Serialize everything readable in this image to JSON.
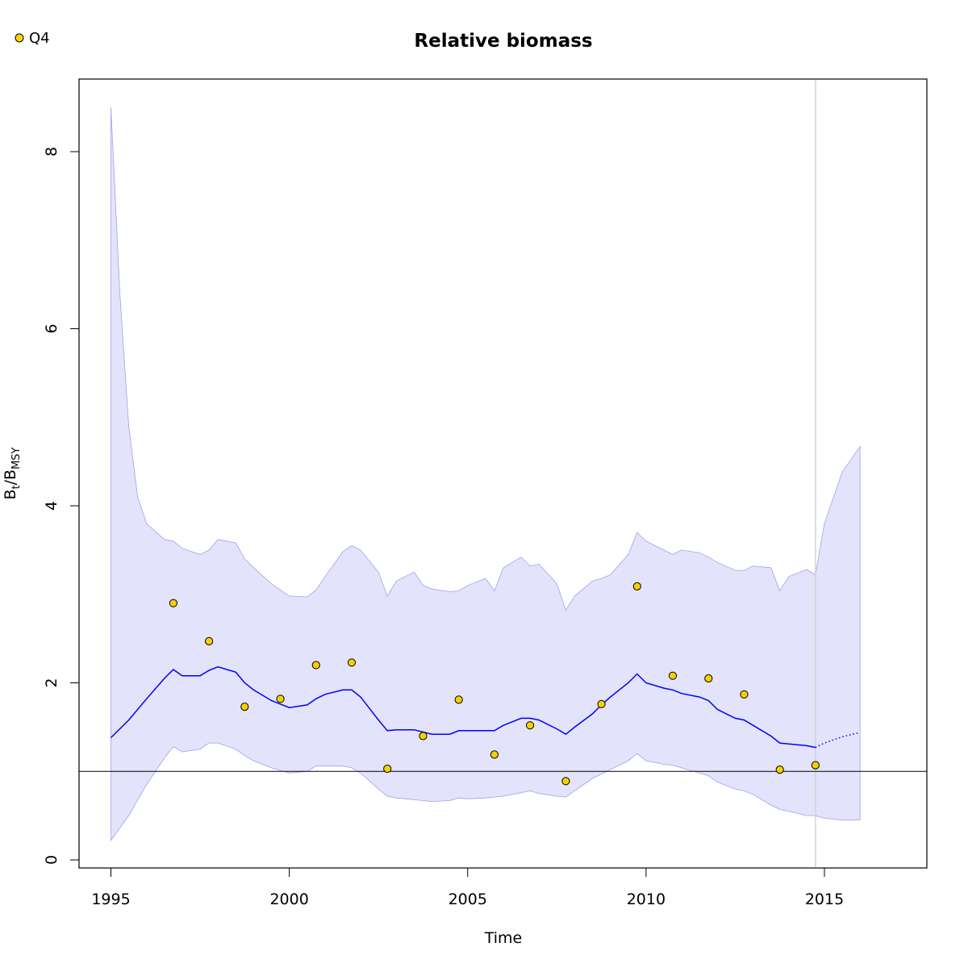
{
  "chart_data": {
    "type": "line",
    "title": "Relative biomass",
    "xlabel": "Time",
    "ylabel": {
      "base": "B",
      "sub1": "t",
      "sep": "/B",
      "sub2": "MSY"
    },
    "xlim": [
      1995,
      2018
    ],
    "ylim": [
      0,
      8.5
    ],
    "xticks": [
      1995,
      2000,
      2005,
      2010,
      2015
    ],
    "yticks": [
      0,
      2,
      4,
      6,
      8
    ],
    "reference_line_y": 1,
    "vertical_line_x": 2014.75,
    "legend": {
      "position": "top-left",
      "entries": [
        {
          "label": "Q4",
          "color": "#FFD700"
        }
      ]
    },
    "colors": {
      "band": "#E3E3FB",
      "band_edge": "#A0A0F0",
      "line": "#0000FF",
      "point": "#F5D000",
      "refline": "#000000",
      "vline": "#D3D3D3"
    },
    "series": [
      {
        "name": "B/Bmsy estimate",
        "kind": "line",
        "x": [
          1995,
          1995.5,
          1996,
          1996.5,
          1996.75,
          1997,
          1997.5,
          1997.75,
          1998,
          1998.5,
          1998.75,
          1999,
          1999.5,
          2000,
          2000.5,
          2000.75,
          2001,
          2001.5,
          2001.75,
          2002,
          2002.5,
          2002.75,
          2003,
          2003.5,
          2004,
          2004.5,
          2004.75,
          2005,
          2005.5,
          2005.75,
          2006,
          2006.5,
          2006.75,
          2007,
          2007.5,
          2007.75,
          2008,
          2008.5,
          2008.75,
          2009,
          2009.5,
          2009.75,
          2010,
          2010.5,
          2010.75,
          2011,
          2011.5,
          2011.75,
          2012,
          2012.5,
          2012.75,
          2013,
          2013.5,
          2013.75,
          2014,
          2014.5,
          2014.75
        ],
        "y": [
          1.38,
          1.58,
          1.82,
          2.05,
          2.15,
          2.08,
          2.08,
          2.14,
          2.18,
          2.12,
          2.0,
          1.92,
          1.8,
          1.72,
          1.75,
          1.82,
          1.87,
          1.92,
          1.92,
          1.84,
          1.58,
          1.46,
          1.47,
          1.47,
          1.42,
          1.42,
          1.46,
          1.46,
          1.46,
          1.46,
          1.52,
          1.6,
          1.6,
          1.58,
          1.48,
          1.42,
          1.5,
          1.65,
          1.75,
          1.84,
          2.0,
          2.1,
          2.0,
          1.94,
          1.92,
          1.88,
          1.84,
          1.8,
          1.7,
          1.6,
          1.58,
          1.52,
          1.4,
          1.32,
          1.31,
          1.29,
          1.27
        ]
      },
      {
        "name": "B/Bmsy forecast",
        "kind": "dotted-line",
        "x": [
          2014.75,
          2015,
          2015.5,
          2016
        ],
        "y": [
          1.27,
          1.32,
          1.39,
          1.44
        ]
      },
      {
        "name": "95% CI upper",
        "kind": "band-upper",
        "x": [
          1995,
          1995.25,
          1995.5,
          1995.75,
          1996,
          1996.5,
          1996.75,
          1997,
          1997.5,
          1997.75,
          1998,
          1998.5,
          1998.75,
          1999,
          1999.5,
          2000,
          2000.5,
          2000.75,
          2001,
          2001.5,
          2001.75,
          2002,
          2002.5,
          2002.75,
          2003,
          2003.5,
          2003.75,
          2004,
          2004.5,
          2004.75,
          2005,
          2005.5,
          2005.75,
          2006,
          2006.5,
          2006.75,
          2007,
          2007.5,
          2007.75,
          2008,
          2008.5,
          2008.75,
          2009,
          2009.5,
          2009.75,
          2010,
          2010.5,
          2010.75,
          2011,
          2011.5,
          2011.75,
          2012,
          2012.5,
          2012.75,
          2013,
          2013.5,
          2013.75,
          2014,
          2014.5,
          2014.75,
          2015,
          2015.5,
          2016
        ],
        "y": [
          8.5,
          6.4,
          4.9,
          4.1,
          3.8,
          3.62,
          3.6,
          3.52,
          3.45,
          3.5,
          3.62,
          3.58,
          3.4,
          3.3,
          3.12,
          2.98,
          2.97,
          3.05,
          3.2,
          3.48,
          3.55,
          3.5,
          3.25,
          2.98,
          3.15,
          3.25,
          3.1,
          3.06,
          3.03,
          3.04,
          3.1,
          3.18,
          3.04,
          3.3,
          3.42,
          3.32,
          3.34,
          3.12,
          2.82,
          2.98,
          3.15,
          3.18,
          3.22,
          3.45,
          3.7,
          3.6,
          3.5,
          3.45,
          3.5,
          3.47,
          3.42,
          3.36,
          3.27,
          3.27,
          3.32,
          3.3,
          3.04,
          3.2,
          3.28,
          3.22,
          3.8,
          4.38,
          4.67
        ]
      },
      {
        "name": "95% CI lower",
        "kind": "band-lower",
        "x": [
          1995,
          1995.5,
          1996,
          1996.5,
          1996.75,
          1997,
          1997.5,
          1997.75,
          1998,
          1998.5,
          1998.75,
          1999,
          1999.5,
          2000,
          2000.5,
          2000.75,
          2001,
          2001.5,
          2001.75,
          2002,
          2002.5,
          2002.75,
          2003,
          2003.5,
          2004,
          2004.5,
          2004.75,
          2005,
          2005.5,
          2005.75,
          2006,
          2006.5,
          2006.75,
          2007,
          2007.5,
          2007.75,
          2008,
          2008.5,
          2008.75,
          2009,
          2009.5,
          2009.75,
          2010,
          2010.5,
          2010.75,
          2011,
          2011.5,
          2011.75,
          2012,
          2012.5,
          2012.75,
          2013,
          2013.5,
          2013.75,
          2014,
          2014.5,
          2014.75,
          2015,
          2015.5,
          2016
        ],
        "y": [
          0.22,
          0.5,
          0.85,
          1.15,
          1.28,
          1.22,
          1.25,
          1.32,
          1.32,
          1.25,
          1.18,
          1.12,
          1.04,
          0.98,
          1.0,
          1.06,
          1.06,
          1.06,
          1.04,
          0.98,
          0.8,
          0.72,
          0.7,
          0.68,
          0.66,
          0.67,
          0.7,
          0.69,
          0.7,
          0.71,
          0.72,
          0.76,
          0.78,
          0.75,
          0.72,
          0.71,
          0.78,
          0.92,
          0.97,
          1.02,
          1.12,
          1.2,
          1.12,
          1.08,
          1.07,
          1.04,
          0.98,
          0.95,
          0.88,
          0.8,
          0.78,
          0.74,
          0.62,
          0.57,
          0.55,
          0.5,
          0.5,
          0.47,
          0.45,
          0.45
        ]
      },
      {
        "name": "Q4",
        "kind": "points",
        "x": [
          1996.75,
          1997.75,
          1998.75,
          1999.75,
          2000.75,
          2001.75,
          2002.75,
          2003.75,
          2004.75,
          2005.75,
          2006.75,
          2007.75,
          2008.75,
          2009.75,
          2010.75,
          2011.75,
          2012.75,
          2013.75,
          2014.75
        ],
        "y": [
          2.9,
          2.47,
          1.73,
          1.82,
          2.2,
          2.23,
          1.03,
          1.4,
          1.81,
          1.19,
          1.52,
          0.89,
          1.76,
          3.09,
          2.08,
          2.05,
          1.87,
          1.02,
          1.07
        ]
      }
    ]
  }
}
